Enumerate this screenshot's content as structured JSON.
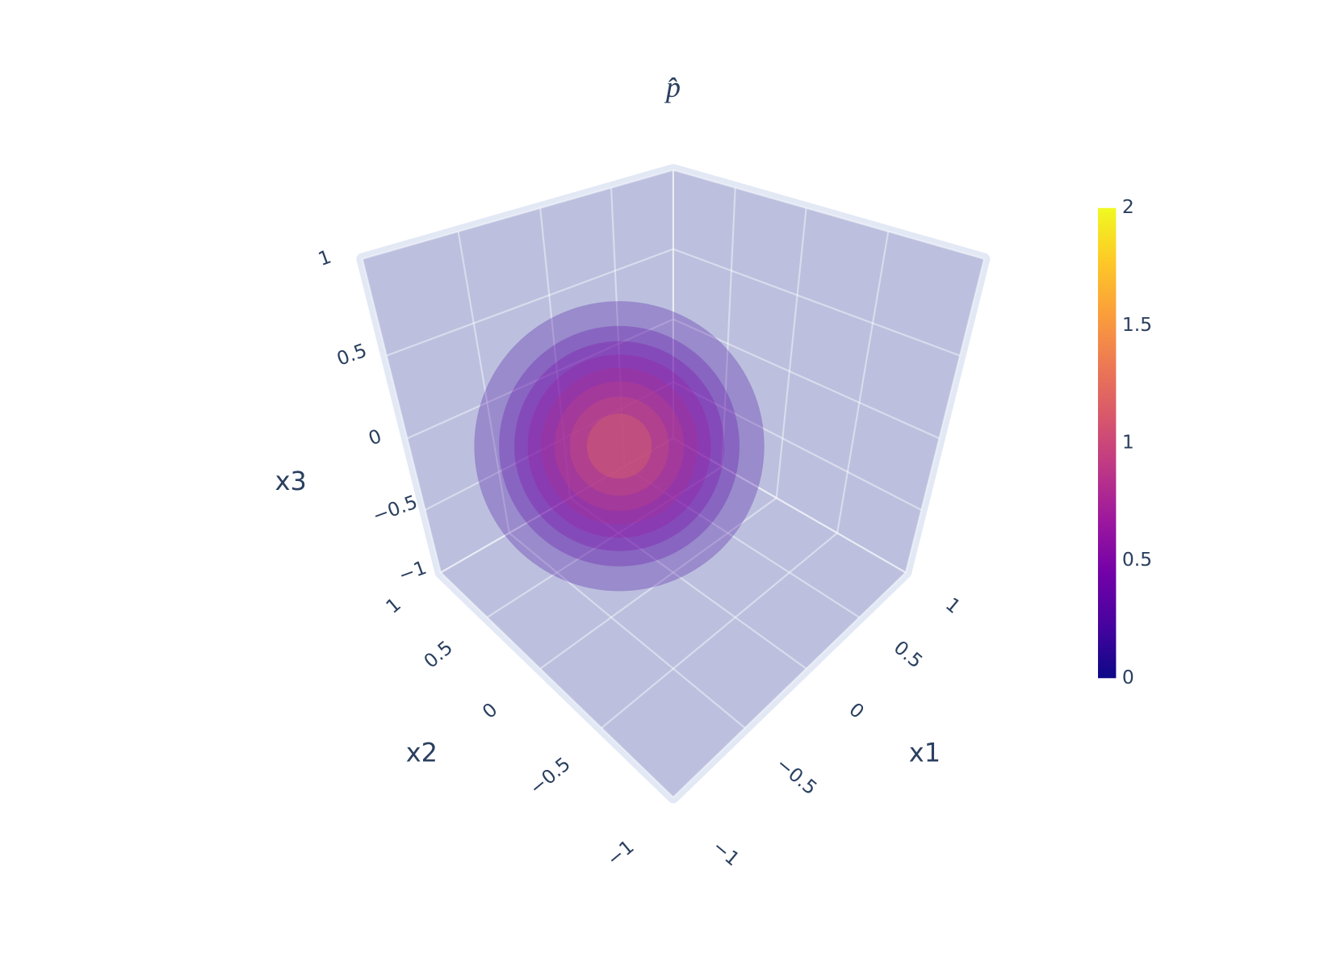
{
  "chart_data": {
    "type": "volume",
    "title": "p̂",
    "xaxis_title": "x1",
    "yaxis_title": "x2",
    "zaxis_title": "x3",
    "xlim": [
      -1,
      1
    ],
    "ylim": [
      -1,
      1
    ],
    "zlim": [
      -1,
      1
    ],
    "xticks": [
      {
        "value": -1,
        "label": "−1"
      },
      {
        "value": -0.5,
        "label": "−0.5"
      },
      0,
      0.5,
      1
    ],
    "yticks": [
      {
        "value": -1,
        "label": "−1"
      },
      {
        "value": -0.5,
        "label": "−0.5"
      },
      0,
      0.5,
      1
    ],
    "zticks": [
      {
        "value": -1,
        "label": "−1"
      },
      {
        "value": -0.5,
        "label": "−0.5"
      },
      0,
      0.5,
      1
    ],
    "grid": true,
    "background_color": "#bcc0de",
    "center": [
      -0.25,
      0.15,
      0
    ],
    "isosurfaces": {
      "values": [
        0.2,
        0.35,
        0.5,
        0.65,
        0.8,
        0.95,
        1.1,
        1.3
      ],
      "radii": [
        0.76,
        0.63,
        0.55,
        0.48,
        0.41,
        0.34,
        0.26,
        0.17
      ]
    },
    "colorscale": [
      "#0d0887",
      "#46039f",
      "#7201a8",
      "#9c179e",
      "#bd3786",
      "#d8576b",
      "#ed7953",
      "#fb9f3a",
      "#fdca26",
      "#f0f921"
    ],
    "cmin": 0,
    "cmax": 2,
    "colorbar_ticks": [
      0,
      0.5,
      1,
      1.5,
      2
    ]
  }
}
